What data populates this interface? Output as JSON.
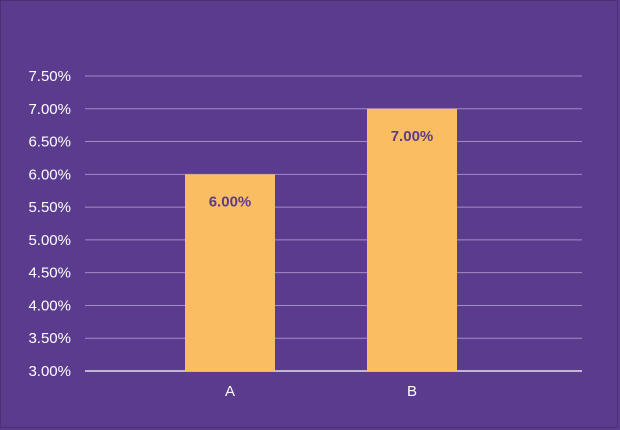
{
  "chart_data": {
    "type": "bar",
    "categories": [
      "A",
      "B"
    ],
    "values": [
      6.0,
      7.0
    ],
    "data_labels": [
      "6.00%",
      "7.00%"
    ],
    "ylim": [
      3.0,
      7.5
    ],
    "yticks": [
      3.0,
      3.5,
      4.0,
      4.5,
      5.0,
      5.5,
      6.0,
      6.5,
      7.0,
      7.5
    ],
    "ytick_labels": [
      "3.00%",
      "3.50%",
      "4.00%",
      "4.50%",
      "5.00%",
      "5.50%",
      "6.00%",
      "6.50%",
      "7.00%",
      "7.50%"
    ],
    "grid": true,
    "legend": false,
    "colors": {
      "background": "#5b3b8e",
      "bar": "#fbbd62",
      "gridline": "#a08cc4",
      "text": "#ffffff",
      "data_label": "#5b3b8e"
    }
  }
}
